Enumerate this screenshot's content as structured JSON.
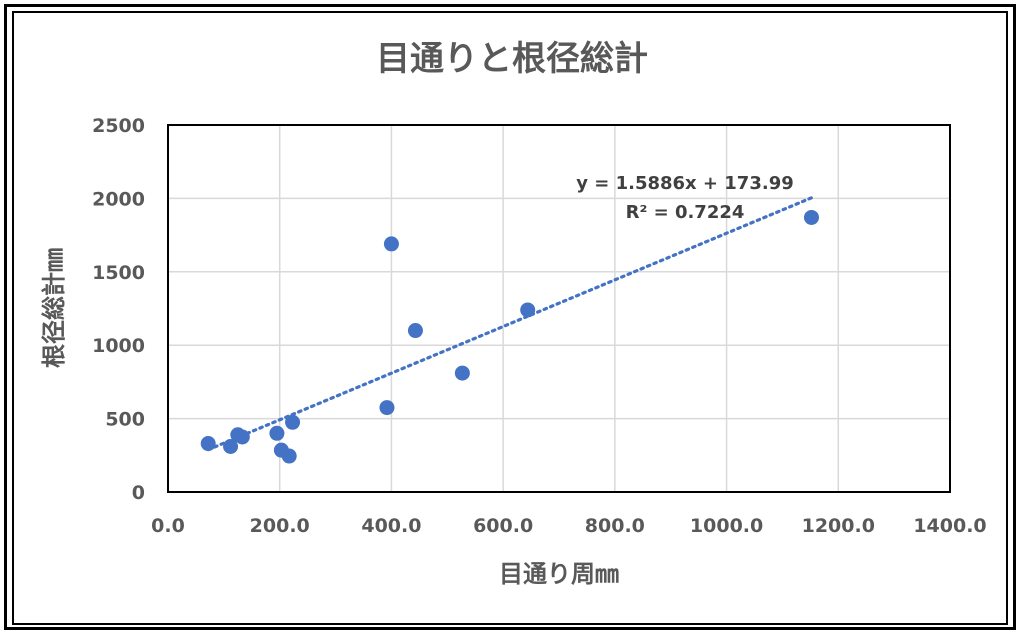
{
  "chart_data": {
    "type": "scatter",
    "title": "目通りと根径総計",
    "xlabel": "目通り周㎜",
    "ylabel": "根径総計㎜",
    "xlim": [
      0,
      1400
    ],
    "ylim": [
      0,
      2500
    ],
    "x_ticks": [
      "0.0",
      "200.0",
      "400.0",
      "600.0",
      "800.0",
      "1000.0",
      "1200.0",
      "1400.0"
    ],
    "y_ticks": [
      "0",
      "500",
      "1000",
      "1500",
      "2000",
      "2500"
    ],
    "grid": true,
    "marker_color": "#4472C4",
    "points": [
      {
        "x": 72,
        "y": 330
      },
      {
        "x": 112,
        "y": 310
      },
      {
        "x": 125,
        "y": 390
      },
      {
        "x": 133,
        "y": 375
      },
      {
        "x": 195,
        "y": 400
      },
      {
        "x": 203,
        "y": 285
      },
      {
        "x": 217,
        "y": 245
      },
      {
        "x": 223,
        "y": 475
      },
      {
        "x": 392,
        "y": 575
      },
      {
        "x": 400,
        "y": 1690
      },
      {
        "x": 443,
        "y": 1100
      },
      {
        "x": 527,
        "y": 810
      },
      {
        "x": 644,
        "y": 1240
      },
      {
        "x": 1152,
        "y": 1870
      }
    ],
    "trendline": {
      "type": "linear",
      "slope": 1.5886,
      "intercept": 173.99,
      "x_range": [
        72,
        1152
      ],
      "style": "dotted",
      "equation_label": "y = 1.5886x + 173.99",
      "r2_label": "R² = 0.7224"
    }
  }
}
